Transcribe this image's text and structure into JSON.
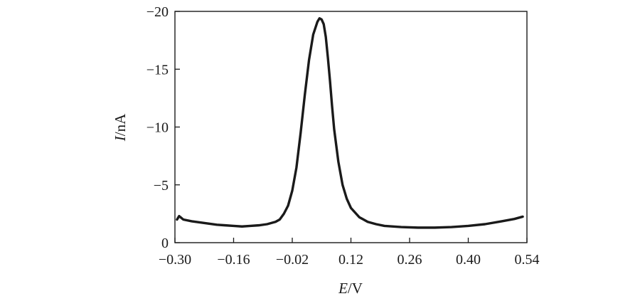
{
  "chart_data": {
    "type": "line",
    "title": "",
    "xlabel": {
      "var": "E",
      "unit": "/V"
    },
    "ylabel": {
      "var": "I",
      "unit": "/nA"
    },
    "xlim": [
      -0.3,
      0.54
    ],
    "ylim": [
      0,
      -20
    ],
    "y_axis_inverted": true,
    "grid": false,
    "legend": "none",
    "colors": {
      "line": "#1a1a1a",
      "axis": "#1a1a1a"
    },
    "xticks": [
      {
        "value": -0.3,
        "label": "−0.30"
      },
      {
        "value": -0.16,
        "label": "−0.16"
      },
      {
        "value": -0.02,
        "label": "−0.02"
      },
      {
        "value": 0.12,
        "label": "0.12"
      },
      {
        "value": 0.26,
        "label": "0.26"
      },
      {
        "value": 0.4,
        "label": "0.40"
      },
      {
        "value": 0.54,
        "label": "0.54"
      }
    ],
    "yticks": [
      {
        "value": 0,
        "label": "0"
      },
      {
        "value": -5,
        "label": "−5"
      },
      {
        "value": -10,
        "label": "−10"
      },
      {
        "value": -15,
        "label": "−15"
      },
      {
        "value": -20,
        "label": "−20"
      }
    ],
    "series": [
      {
        "x": [
          -0.295,
          -0.29,
          -0.28,
          -0.26,
          -0.24,
          -0.22,
          -0.2,
          -0.18,
          -0.16,
          -0.14,
          -0.12,
          -0.1,
          -0.08,
          -0.06,
          -0.05,
          -0.04,
          -0.03,
          -0.02,
          -0.01,
          0.0,
          0.01,
          0.02,
          0.03,
          0.04,
          0.045,
          0.05,
          0.055,
          0.06,
          0.065,
          0.07,
          0.075,
          0.08,
          0.09,
          0.1,
          0.11,
          0.12,
          0.14,
          0.16,
          0.18,
          0.2,
          0.24,
          0.28,
          0.32,
          0.36,
          0.4,
          0.44,
          0.48,
          0.51,
          0.53
        ],
        "y": [
          -2.0,
          -2.3,
          -2.0,
          -1.85,
          -1.75,
          -1.65,
          -1.55,
          -1.5,
          -1.45,
          -1.4,
          -1.45,
          -1.5,
          -1.6,
          -1.8,
          -2.0,
          -2.5,
          -3.2,
          -4.5,
          -6.5,
          -9.5,
          -12.8,
          -15.8,
          -18.0,
          -19.1,
          -19.4,
          -19.3,
          -18.9,
          -17.8,
          -16.0,
          -14.0,
          -11.8,
          -9.8,
          -7.0,
          -5.0,
          -3.8,
          -3.0,
          -2.2,
          -1.8,
          -1.6,
          -1.45,
          -1.35,
          -1.3,
          -1.3,
          -1.35,
          -1.45,
          -1.6,
          -1.85,
          -2.05,
          -2.25
        ]
      }
    ]
  }
}
